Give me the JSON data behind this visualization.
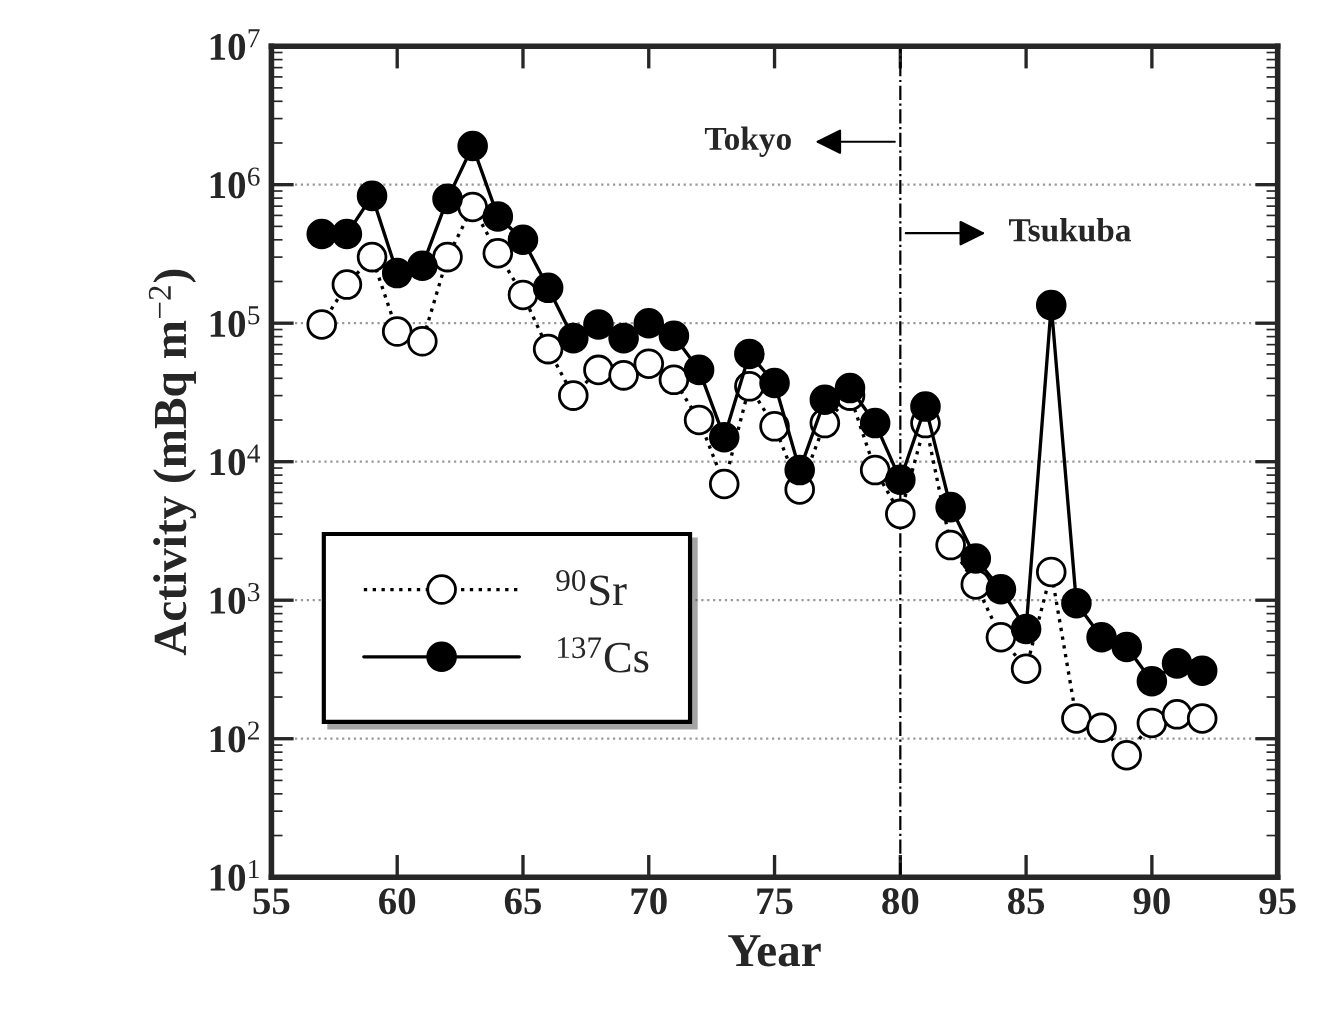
{
  "chart_data": {
    "type": "line",
    "xlabel": "Year",
    "ylabel": "Activity (mBq m$^{−2}$)",
    "x": [
      57,
      58,
      59,
      60,
      61,
      62,
      63,
      64,
      65,
      66,
      67,
      68,
      69,
      70,
      71,
      72,
      73,
      74,
      75,
      76,
      77,
      78,
      79,
      80,
      81,
      82,
      83,
      84,
      85,
      86,
      87,
      88,
      89,
      90,
      91,
      92
    ],
    "series": [
      {
        "name": "$^{90}$Sr",
        "color": "#000000",
        "marker": "circle",
        "line_style": "dotted",
        "values": [
          98000,
          190000,
          300000,
          87000,
          74000,
          300000,
          690000,
          320000,
          160000,
          65000,
          30000,
          46000,
          42000,
          51000,
          39000,
          20000,
          6900,
          35000,
          18000,
          6300,
          19000,
          30000,
          8700,
          4200,
          19000,
          2500,
          1300,
          540,
          320,
          1600,
          140,
          120,
          76,
          130,
          150,
          140
        ]
      },
      {
        "name": "$^{137}$Cs",
        "color": "#000000",
        "marker": "circle",
        "line_style": "solid",
        "values": [
          440000,
          440000,
          830000,
          230000,
          260000,
          790000,
          1900000,
          590000,
          400000,
          180000,
          78000,
          98000,
          78000,
          100000,
          81000,
          46000,
          15000,
          60000,
          37000,
          8700,
          28000,
          34000,
          19000,
          7400,
          25000,
          4700,
          2000,
          1200,
          620,
          135000,
          950,
          540,
          460,
          260,
          350,
          310
        ]
      }
    ],
    "log": "y",
    "xlim": [
      55,
      95
    ],
    "xticks": [
      55,
      60,
      65,
      70,
      75,
      80,
      85,
      90,
      95
    ],
    "ylim": [
      10,
      10000000
    ],
    "yticks": [
      {
        "value": 10,
        "label": "10$^{1}$"
      },
      {
        "value": 100,
        "label": "10$^{2}$"
      },
      {
        "value": 1000,
        "label": "10$^{3}$"
      },
      {
        "value": 10000,
        "label": "10$^{4}$"
      },
      {
        "value": 100000,
        "label": "10$^{5}$"
      },
      {
        "value": 1000000,
        "label": "10$^{6}$"
      },
      {
        "value": 10000000,
        "label": "10$^{7}$"
      }
    ],
    "grid": "y",
    "legend": "left",
    "ref_lines": [
      {
        "axis": "x",
        "value": 80,
        "line_style": "dashdot"
      }
    ],
    "annotations": [
      "Tokyo",
      "Tsukuba"
    ]
  }
}
